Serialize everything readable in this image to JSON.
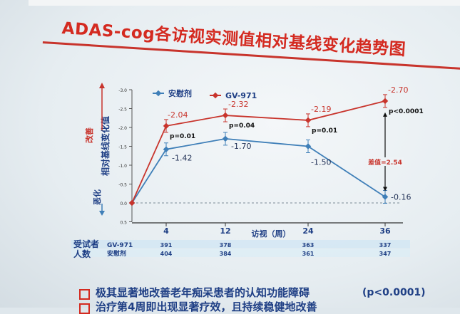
{
  "title": "ADAS-cog各访视实测值相对基线变化趋势图",
  "colors": {
    "red": "#c8342c",
    "blue": "#3f7fb8",
    "title": "#d42a20",
    "navy": "#1f3f85"
  },
  "side_labels": {
    "improve": "改善",
    "worsen": "恶化"
  },
  "table": {
    "header_line1": "受试者",
    "header_line2": "人数",
    "rows": [
      {
        "name": "GV-971",
        "values": [
          "391",
          "378",
          "363",
          "337"
        ]
      },
      {
        "name": "安慰剂",
        "values": [
          "404",
          "384",
          "361",
          "347"
        ]
      }
    ]
  },
  "bullets": [
    "极其显著地改善老年痴呆患者的认知功能障碍",
    "治疗第4周即出现显著疗效，且持续稳健地改善"
  ],
  "p_note": "(p<0.0001)",
  "chart_data": {
    "type": "line",
    "x": [
      0,
      4,
      12,
      24,
      36
    ],
    "xlabel": "访视（周）",
    "ylabel": "相对基线变化值",
    "yticks": [
      "-3.0",
      "-2.5",
      "-2.0",
      "-1.5",
      "-1.0",
      "-0.5",
      "0.0",
      "0.5"
    ],
    "ylim": [
      -3.0,
      0.5
    ],
    "xtick_labels": [
      "4",
      "12",
      "24",
      "36"
    ],
    "series": [
      {
        "name": "安慰剂",
        "color": "#3f7fb8",
        "marker": "diamond",
        "values": [
          0,
          -1.42,
          -1.7,
          -1.5,
          -0.16
        ],
        "labels": [
          "",
          "-1.42",
          "-1.70",
          "-1.50",
          "-0.16"
        ]
      },
      {
        "name": "GV-971",
        "color": "#c8342c",
        "marker": "diamond",
        "values": [
          0,
          -2.04,
          -2.32,
          -2.19,
          -2.7
        ],
        "labels": [
          "",
          "-2.04",
          "-2.32",
          "-2.19",
          "-2.70"
        ]
      }
    ],
    "pvalues": [
      "",
      "p=0.01",
      "p=0.04",
      "p=0.01",
      "p<0.0001"
    ],
    "difference_label": "差值=2.54",
    "legend_position": "top"
  }
}
